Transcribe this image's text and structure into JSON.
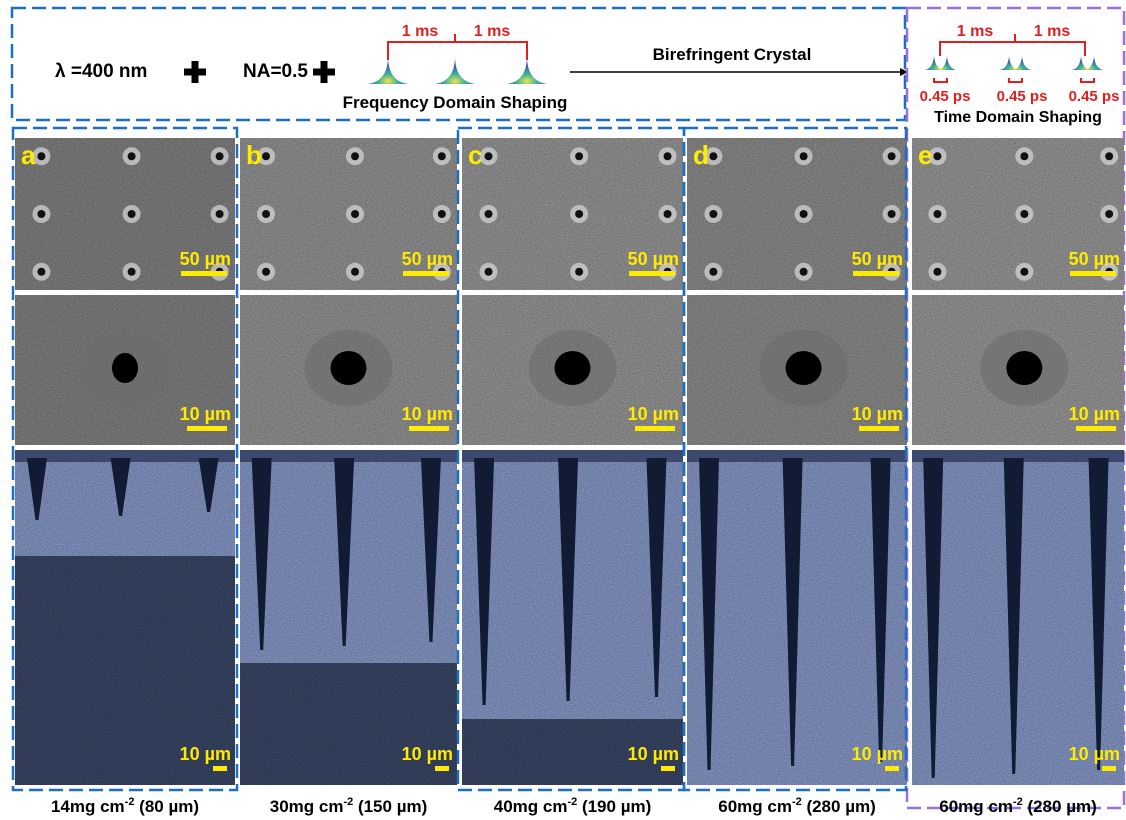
{
  "header": {
    "wavelength": "λ =400 nm",
    "na": "NA=0.5",
    "frequency_intervals": [
      "1 ms",
      "1 ms"
    ],
    "frequency_label": "Frequency Domain Shaping",
    "crystal": "Birefringent Crystal",
    "time_intervals": [
      "1 ms",
      "1 ms"
    ],
    "pulse_delays": [
      "0.45 ps",
      "0.45 ps",
      "0.45 ps"
    ],
    "time_label": "Time Domain Shaping"
  },
  "panels": [
    {
      "letter": "a",
      "scale_top": "50 µm",
      "scale_middle": "10 µm",
      "scale_bottom": "10 µm",
      "caption": {
        "main": "14mg cm",
        "sup": "-2",
        "tail": " (80 µm)"
      }
    },
    {
      "letter": "b",
      "scale_top": "50 µm",
      "scale_middle": "10 µm",
      "scale_bottom": "10 µm",
      "caption": {
        "main": "30mg cm",
        "sup": "-2",
        "tail": " (150 µm)"
      }
    },
    {
      "letter": "c",
      "scale_top": "50 µm",
      "scale_middle": "10 µm",
      "scale_bottom": "10 µm",
      "caption": {
        "main": "40mg cm",
        "sup": "-2",
        "tail": " (190 µm)"
      }
    },
    {
      "letter": "d",
      "scale_top": "50 µm",
      "scale_middle": "10 µm",
      "scale_bottom": "10 µm",
      "caption": {
        "main": "60mg cm",
        "sup": "-2",
        "tail": " (280 µm)"
      }
    },
    {
      "letter": "e",
      "scale_top": "50 µm",
      "scale_middle": "10 µm",
      "scale_bottom": "10 µm",
      "caption": {
        "main": "60mg cm",
        "sup": "-2",
        "tail": " (280 µm)"
      }
    }
  ]
}
